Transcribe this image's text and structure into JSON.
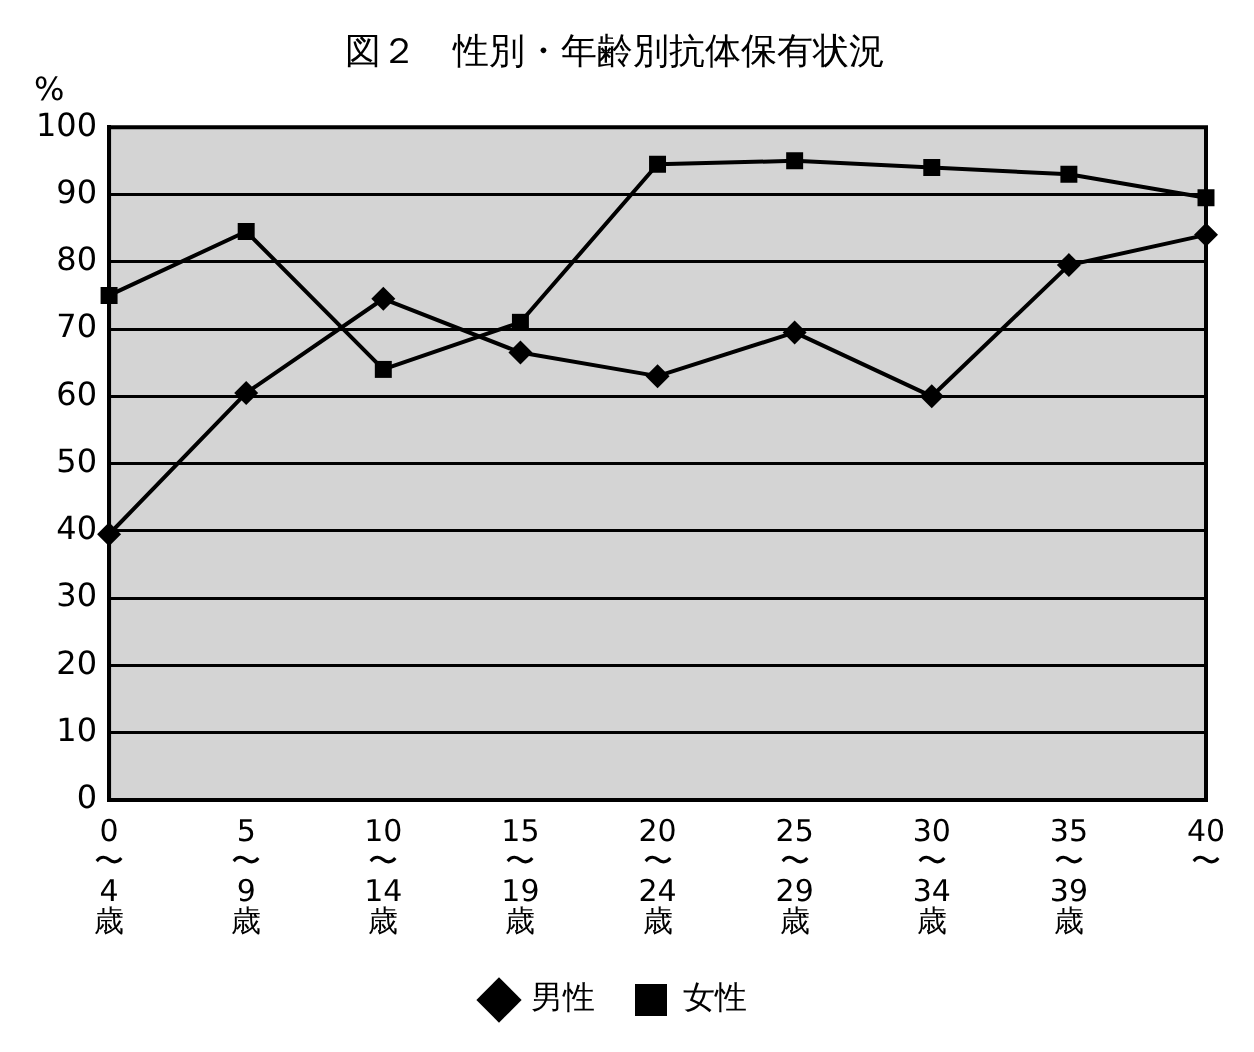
{
  "chart_data": {
    "type": "line",
    "title": "図２　性別・年齢別抗体保有状況",
    "ylabel": "%",
    "categories": [
      "0\n〜\n4\n歳",
      "5\n〜\n9\n歳",
      "10\n〜\n14\n歳",
      "15\n〜\n19\n歳",
      "20\n〜\n24\n歳",
      "25\n〜\n29\n歳",
      "30\n〜\n34\n歳",
      "35\n〜\n39\n歳",
      "40\n〜"
    ],
    "series": [
      {
        "name": "男性",
        "color": "#000000",
        "marker": "diamond",
        "values": [
          39.5,
          60.5,
          74.5,
          66.5,
          63,
          69.5,
          60,
          79.5,
          84
        ]
      },
      {
        "name": "女性",
        "color": "#000000",
        "marker": "square",
        "values": [
          75,
          84.5,
          64,
          71,
          94.5,
          95,
          94,
          93,
          89.5
        ]
      }
    ],
    "ylim": [
      0,
      100
    ],
    "yticks": [
      0,
      10,
      20,
      30,
      40,
      50,
      60,
      70,
      80,
      90,
      100
    ],
    "grid": "y",
    "legend": "bottom",
    "line_style": "solid"
  }
}
